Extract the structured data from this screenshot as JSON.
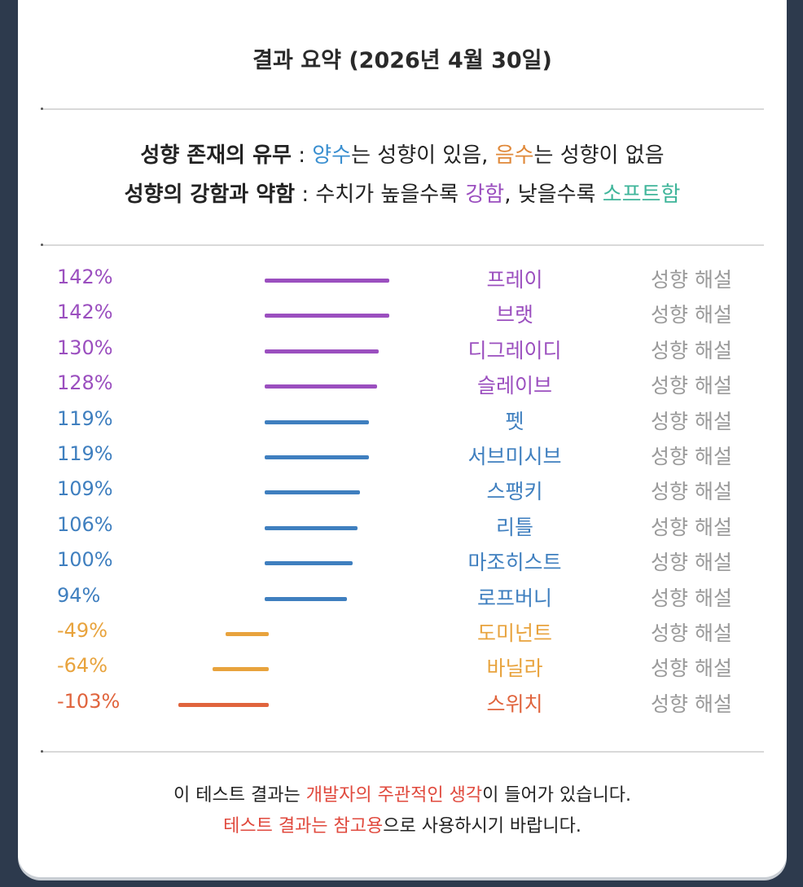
{
  "title": "결과 요약 (2026년 4월 30일)",
  "legend": {
    "line1": {
      "label": "성향 존재의 유무",
      "sep": " : ",
      "positive": "양수",
      "positive_text": "는 성향이 있음, ",
      "negative": "음수",
      "negative_text": "는 성향이 없음"
    },
    "line2": {
      "label": "성향의 강함과 약함",
      "sep": " : ",
      "text_a": "수치가 높을수록 ",
      "strong": "강함",
      "text_b": ", 낮을수록 ",
      "soft": "소프트함"
    }
  },
  "colors": {
    "purple": "#9b4fbf",
    "blue": "#3f7fbf",
    "orange": "#e8a33d",
    "red": "#e0643d",
    "desc_gray": "#9a9a9a"
  },
  "chart_data": {
    "type": "bar",
    "orientation": "horizontal",
    "title": "결과 요약 (2026년 4월 30일)",
    "categories": [
      "프레이",
      "브랫",
      "디그레이디",
      "슬레이브",
      "펫",
      "서브미시브",
      "스팽키",
      "리틀",
      "마조히스트",
      "로프버니",
      "도미넌트",
      "바닐라",
      "스위치"
    ],
    "values": [
      142,
      142,
      130,
      128,
      119,
      119,
      109,
      106,
      100,
      94,
      -49,
      -64,
      -103
    ],
    "value_labels": [
      "142%",
      "142%",
      "130%",
      "128%",
      "119%",
      "119%",
      "109%",
      "106%",
      "100%",
      "94%",
      "-49%",
      "-64%",
      "-103%"
    ],
    "colors": [
      "#9b4fbf",
      "#9b4fbf",
      "#9b4fbf",
      "#9b4fbf",
      "#3f7fbf",
      "#3f7fbf",
      "#3f7fbf",
      "#3f7fbf",
      "#3f7fbf",
      "#3f7fbf",
      "#e8a33d",
      "#e8a33d",
      "#e0643d"
    ],
    "row_action_label": "성향 해설",
    "xlim": [
      -103,
      142
    ],
    "grid": false
  },
  "footer": {
    "line1": {
      "text_a": "이 테스트 결과는 ",
      "highlight": "개발자의 주관적인 생각",
      "text_b": "이 들어가 있습니다."
    },
    "line2": {
      "highlight": "테스트 결과는 참고용",
      "text_b": "으로 사용하시기 바랍니다."
    }
  }
}
